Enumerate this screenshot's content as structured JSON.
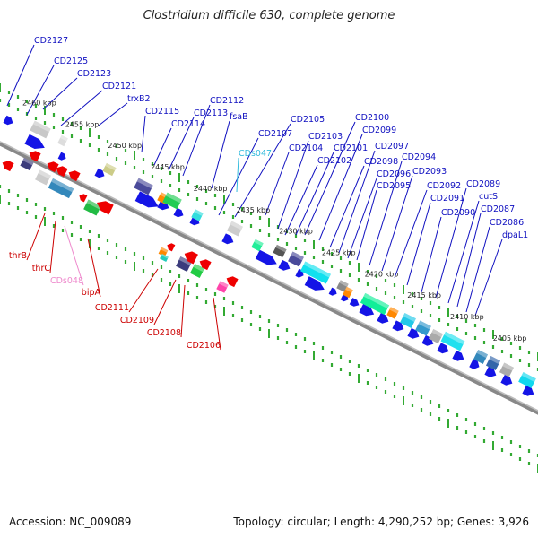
{
  "title": "Clostridium difficile 630, complete genome",
  "footer": {
    "accession": "Accession: NC_009089",
    "summary": "Topology: circular; Length: 4,290,252 bp; Genes: 3,926"
  },
  "colors": {
    "forward_label": "#1010c0",
    "reverse_label": "#cc0000",
    "rna_label_fwd": "#33bbdd",
    "rna_label_rev": "#ee88cc",
    "backbone": "#777777",
    "tick": "#33aa33"
  },
  "kbp_labels": [
    "2460 kbp",
    "2455 kbp",
    "2450 kbp",
    "2445 kbp",
    "2440 kbp",
    "2435 kbp",
    "2430 kbp",
    "2425 kbp",
    "2420 kbp",
    "2415 kbp",
    "2410 kbp",
    "2405 kbp"
  ],
  "forward_genes": [
    "CD2127",
    "CD2125",
    "CD2123",
    "CD2121",
    "trxB2",
    "CD2115",
    "CD2114",
    "CD2113",
    "CD2112",
    "fsaB",
    "CD2107",
    "CD2105",
    "CD2104",
    "CD2103",
    "CD2102",
    "CD2101",
    "CD2100",
    "CD2099",
    "CD2098",
    "CD2097",
    "CD2096",
    "CD2095",
    "CD2094",
    "CD2093",
    "CD2092",
    "CD2091",
    "CD2090",
    "CD2089",
    "cutS",
    "CD2087",
    "CD2086",
    "dpaL1"
  ],
  "forward_rna": "CDs047",
  "reverse_genes": [
    "thrB",
    "thrC",
    "bipA",
    "CD2111",
    "CD2109",
    "CD2108",
    "CD2106"
  ],
  "reverse_rna": "CDs048"
}
